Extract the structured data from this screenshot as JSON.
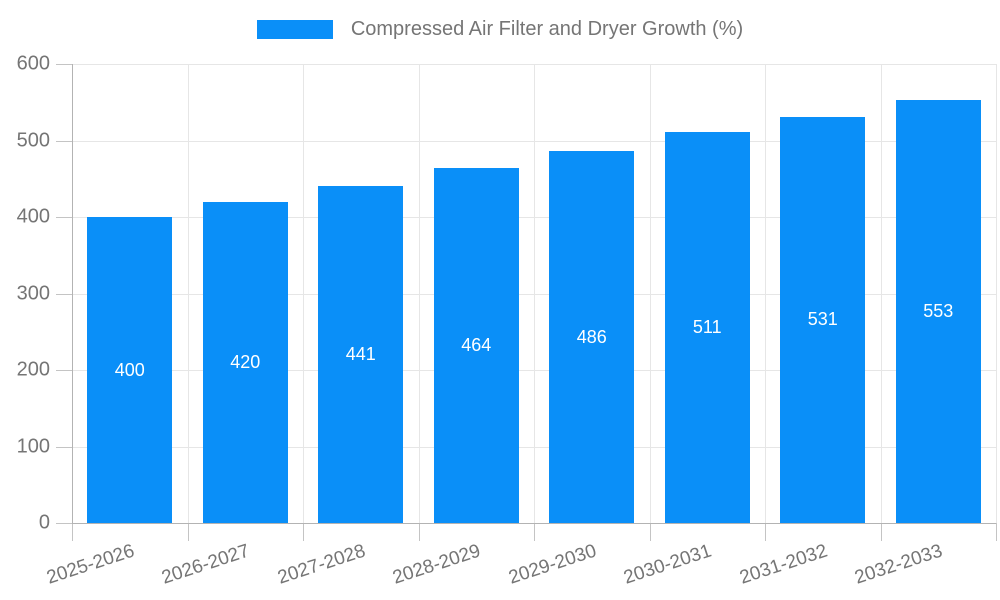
{
  "chart_data": {
    "type": "bar",
    "title": "Compressed Air Filter and Dryer Growth (%)",
    "categories": [
      "2025-2026",
      "2026-2027",
      "2027-2028",
      "2028-2029",
      "2029-2030",
      "2030-2031",
      "2031-2032",
      "2032-2033"
    ],
    "values": [
      400,
      420,
      441,
      464,
      486,
      511,
      531,
      553
    ],
    "xlabel": "",
    "ylabel": "",
    "ylim": [
      0,
      600
    ],
    "y_ticks": [
      0,
      100,
      200,
      300,
      400,
      500,
      600
    ],
    "grid": true,
    "legend_position": "top-center",
    "bar_label_position": "inside-center"
  },
  "colors": {
    "bar": "#0a8ff8",
    "bar_label": "#ffffff",
    "axis_label": "#757575",
    "legend_text": "#757575",
    "grid_line": "#e6e6e6",
    "axis_line": "#b3b3b3",
    "tick": "#c4c4c4",
    "background": "#ffffff"
  }
}
